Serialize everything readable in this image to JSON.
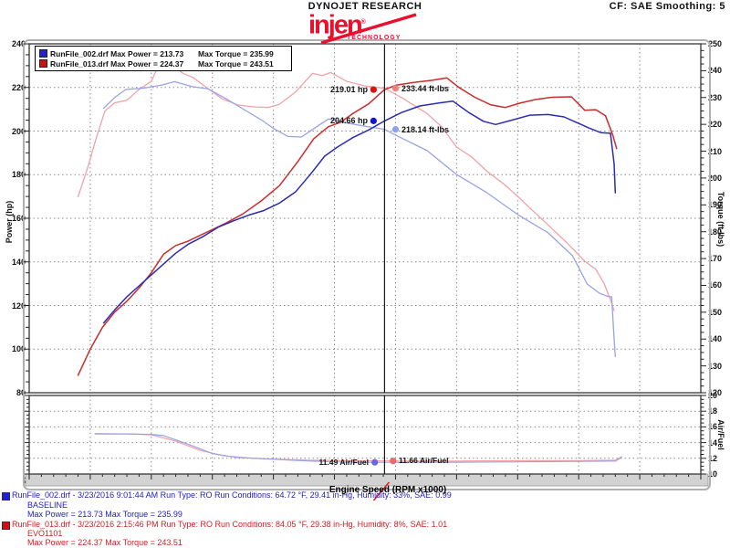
{
  "header": {
    "brand": "DYNOJET RESEARCH",
    "settings": "CF: SAE  Smoothing: 5",
    "logo": {
      "word": "injen",
      "reg": "®",
      "sub": "TECHNOLOGY",
      "color": "#e8112d"
    }
  },
  "legend": {
    "rows": [
      {
        "swatch": "#2222cc",
        "left": "RunFile_002.drf Max Power = 213.73",
        "right": "Max Torque = 235.99"
      },
      {
        "swatch": "#cc1111",
        "left": "RunFile_013.drf Max Power = 224.37",
        "right": "Max Torque = 243.51"
      }
    ]
  },
  "footer": {
    "runs": [
      {
        "swatch": "#2222cc",
        "color": "#2222bb",
        "line1": "RunFile_002.drf - 3/23/2016 9:01:44 AM  Run Type: RO  Run Conditions: 64.72 °F, 29.41 in-Hg,  Humidity:  33%, SAE: 0.99",
        "line2": "BASELINE",
        "line3": "Max Power = 213.73  Max Torque = 235.99"
      },
      {
        "swatch": "#cc1111",
        "color": "#cc2222",
        "line1": "RunFile_013.drf - 3/23/2016 2:15:46 PM  Run Type: RO  Run Conditions: 84.05 °F, 29.38 in-Hg,  Humidity:  8%, SAE: 1.01",
        "line2": "EVO1101",
        "line3": "Max Power = 224.37  Max Torque = 243.51"
      }
    ]
  },
  "chart_data": {
    "type": "line",
    "cursor_rpm": 4.91,
    "main": {
      "x": {
        "label": "Engine Speed (RPM x1000)",
        "min": 2.0,
        "max": 7.5,
        "major": 0.5,
        "minor": 0.1
      },
      "left": {
        "label": "Power (hp)",
        "min": 80,
        "max": 240,
        "major": 20,
        "minor": 5
      },
      "right": {
        "label": "Torque (ft-lbs)",
        "min": 120,
        "max": 250,
        "major": 10,
        "minor": 2.5
      },
      "grid": "dotted",
      "series": [
        {
          "name": "torque_runfile_013",
          "axis": "right",
          "color": "#f2a2a6",
          "width": 1.3,
          "points": [
            [
              2.4,
              193
            ],
            [
              2.48,
              204
            ],
            [
              2.55,
              215
            ],
            [
              2.62,
              225
            ],
            [
              2.7,
              228
            ],
            [
              2.8,
              229
            ],
            [
              2.9,
              233
            ],
            [
              3.0,
              236
            ],
            [
              3.05,
              241
            ],
            [
              3.1,
              243.5
            ],
            [
              3.17,
              242
            ],
            [
              3.26,
              239
            ],
            [
              3.34,
              237.5
            ],
            [
              3.46,
              233.5
            ],
            [
              3.58,
              229.5
            ],
            [
              3.71,
              227.2
            ],
            [
              3.85,
              226.5
            ],
            [
              3.96,
              226.3
            ],
            [
              4.05,
              227.5
            ],
            [
              4.18,
              232
            ],
            [
              4.32,
              239
            ],
            [
              4.4,
              238.2
            ],
            [
              4.47,
              239.3
            ],
            [
              4.6,
              236
            ],
            [
              4.75,
              234.3
            ],
            [
              4.91,
              233.44
            ],
            [
              5.05,
              230
            ],
            [
              5.26,
              224
            ],
            [
              5.38,
              219
            ],
            [
              5.5,
              211.5
            ],
            [
              5.62,
              208
            ],
            [
              5.75,
              202.5
            ],
            [
              5.88,
              198
            ],
            [
              6.0,
              193.2
            ],
            [
              6.12,
              188
            ],
            [
              6.25,
              182.5
            ],
            [
              6.4,
              176
            ],
            [
              6.55,
              169
            ],
            [
              6.64,
              166
            ],
            [
              6.71,
              160.5
            ],
            [
              6.76,
              154.7
            ],
            [
              6.79,
              150.6
            ]
          ]
        },
        {
          "name": "torque_runfile_002",
          "axis": "right",
          "color": "#9aa2e6",
          "width": 1.3,
          "points": [
            [
              2.61,
              226
            ],
            [
              2.7,
              230
            ],
            [
              2.79,
              233
            ],
            [
              2.94,
              233.5
            ],
            [
              3.09,
              234.7
            ],
            [
              3.19,
              235.9
            ],
            [
              3.34,
              234
            ],
            [
              3.46,
              233.3
            ],
            [
              3.61,
              229.6
            ],
            [
              3.76,
              225.5
            ],
            [
              3.91,
              221.4
            ],
            [
              4.0,
              218.5
            ],
            [
              4.12,
              215.5
            ],
            [
              4.23,
              215.3
            ],
            [
              4.35,
              219
            ],
            [
              4.45,
              222
            ],
            [
              4.6,
              220.5
            ],
            [
              4.75,
              219.3
            ],
            [
              4.91,
              218.14
            ],
            [
              5.0,
              216
            ],
            [
              5.26,
              210.2
            ],
            [
              5.5,
              201.3
            ],
            [
              5.75,
              194.5
            ],
            [
              6.0,
              186.4
            ],
            [
              6.25,
              179.6
            ],
            [
              6.45,
              171
            ],
            [
              6.57,
              160.5
            ],
            [
              6.67,
              157.1
            ],
            [
              6.73,
              156
            ],
            [
              6.77,
              155.7
            ],
            [
              6.79,
              140
            ],
            [
              6.8,
              133.5
            ]
          ]
        },
        {
          "name": "power_runfile_013",
          "axis": "left",
          "color": "#cc2b2b",
          "width": 1.5,
          "points": [
            [
              2.4,
              88
            ],
            [
              2.5,
              100
            ],
            [
              2.6,
              110
            ],
            [
              2.7,
              117
            ],
            [
              2.8,
              122
            ],
            [
              2.9,
              128
            ],
            [
              3.0,
              135
            ],
            [
              3.1,
              143.5
            ],
            [
              3.2,
              147.5
            ],
            [
              3.3,
              149.5
            ],
            [
              3.45,
              153.5
            ],
            [
              3.6,
              157.5
            ],
            [
              3.75,
              162
            ],
            [
              3.9,
              168
            ],
            [
              4.05,
              175
            ],
            [
              4.2,
              186
            ],
            [
              4.33,
              196.5
            ],
            [
              4.45,
              202
            ],
            [
              4.55,
              204
            ],
            [
              4.65,
              208
            ],
            [
              4.78,
              212.5
            ],
            [
              4.91,
              219.01
            ],
            [
              5.0,
              221
            ],
            [
              5.15,
              222.3
            ],
            [
              5.3,
              223.3
            ],
            [
              5.42,
              224.37
            ],
            [
              5.52,
              220
            ],
            [
              5.65,
              215.5
            ],
            [
              5.78,
              212
            ],
            [
              5.9,
              210.8
            ],
            [
              6.02,
              212.8
            ],
            [
              6.15,
              214.5
            ],
            [
              6.28,
              215.5
            ],
            [
              6.44,
              215.7
            ],
            [
              6.55,
              209.5
            ],
            [
              6.64,
              209.8
            ],
            [
              6.72,
              207
            ],
            [
              6.78,
              198
            ],
            [
              6.81,
              192
            ]
          ]
        },
        {
          "name": "power_runfile_002",
          "axis": "left",
          "color": "#2b2bb4",
          "width": 1.5,
          "points": [
            [
              2.61,
              112
            ],
            [
              2.7,
              118
            ],
            [
              2.8,
              124
            ],
            [
              2.9,
              129
            ],
            [
              3.0,
              134
            ],
            [
              3.1,
              139
            ],
            [
              3.2,
              144
            ],
            [
              3.3,
              148
            ],
            [
              3.42,
              151.5
            ],
            [
              3.55,
              156
            ],
            [
              3.68,
              159
            ],
            [
              3.8,
              161.5
            ],
            [
              3.92,
              163.5
            ],
            [
              4.05,
              167
            ],
            [
              4.18,
              172
            ],
            [
              4.3,
              180
            ],
            [
              4.42,
              188.5
            ],
            [
              4.52,
              192.5
            ],
            [
              4.65,
              197
            ],
            [
              4.78,
              200.5
            ],
            [
              4.91,
              204.66
            ],
            [
              5.05,
              208.5
            ],
            [
              5.2,
              211.5
            ],
            [
              5.35,
              212.8
            ],
            [
              5.47,
              213.73
            ],
            [
              5.6,
              208.5
            ],
            [
              5.72,
              204.5
            ],
            [
              5.82,
              203
            ],
            [
              5.95,
              205
            ],
            [
              6.1,
              207.3
            ],
            [
              6.25,
              207.6
            ],
            [
              6.38,
              206.5
            ],
            [
              6.48,
              204
            ],
            [
              6.58,
              201.5
            ],
            [
              6.68,
              199.3
            ],
            [
              6.76,
              199
            ],
            [
              6.79,
              185
            ],
            [
              6.8,
              171.7
            ]
          ]
        }
      ]
    },
    "af": {
      "right": {
        "label": "Air/Fuel",
        "min": 10,
        "max": 20,
        "major": 2,
        "minor": 0.5
      },
      "series": [
        {
          "name": "airfuel_runfile_013",
          "color": "#f2a2a6",
          "width": 1.2,
          "points": [
            [
              2.54,
              15.15
            ],
            [
              2.8,
              15.1
            ],
            [
              3.0,
              15.0
            ],
            [
              3.2,
              14.2
            ],
            [
              3.4,
              13.0
            ],
            [
              3.6,
              12.3
            ],
            [
              3.8,
              12.05
            ],
            [
              4.0,
              11.9
            ],
            [
              4.3,
              11.75
            ],
            [
              4.6,
              11.7
            ],
            [
              4.98,
              11.66
            ],
            [
              5.5,
              11.65
            ],
            [
              6.0,
              11.7
            ],
            [
              6.5,
              11.7
            ],
            [
              6.8,
              11.75
            ],
            [
              6.85,
              12.2
            ]
          ]
        },
        {
          "name": "airfuel_runfile_002",
          "color": "#9aa2e6",
          "width": 1.2,
          "points": [
            [
              2.54,
              15.1
            ],
            [
              2.8,
              15.1
            ],
            [
              3.0,
              15.05
            ],
            [
              3.1,
              14.9
            ],
            [
              3.3,
              13.8
            ],
            [
              3.5,
              12.6
            ],
            [
              3.7,
              12.1
            ],
            [
              3.9,
              11.95
            ],
            [
              4.1,
              11.8
            ],
            [
              4.3,
              11.65
            ],
            [
              4.5,
              11.55
            ],
            [
              4.83,
              11.49
            ],
            [
              5.5,
              11.5
            ],
            [
              6.0,
              11.55
            ],
            [
              6.5,
              11.6
            ],
            [
              6.8,
              11.65
            ],
            [
              6.85,
              12.1
            ]
          ]
        }
      ]
    },
    "markers": [
      {
        "chart": "main",
        "axis": "left",
        "rpm": 4.82,
        "value": 219.01,
        "dot": "#dd1111",
        "label": "219.01 hp"
      },
      {
        "chart": "main",
        "axis": "right",
        "rpm": 5.0,
        "value": 233.44,
        "dot": "#f57f7f",
        "label": "233.44 ft-lbs"
      },
      {
        "chart": "main",
        "axis": "left",
        "rpm": 4.82,
        "value": 204.66,
        "dot": "#1515cc",
        "label": "204.66 hp"
      },
      {
        "chart": "main",
        "axis": "right",
        "rpm": 5.0,
        "value": 218.14,
        "dot": "#8fa0f0",
        "label": "218.14 ft-lbs"
      },
      {
        "chart": "af",
        "axis": "right",
        "rpm": 4.83,
        "value": 11.49,
        "dot": "#6a6ae0",
        "label": "11.49 Air/Fuel"
      },
      {
        "chart": "af",
        "axis": "right",
        "rpm": 4.98,
        "value": 11.66,
        "dot": "#e86a6a",
        "label": "11.66 Air/Fuel"
      }
    ]
  }
}
